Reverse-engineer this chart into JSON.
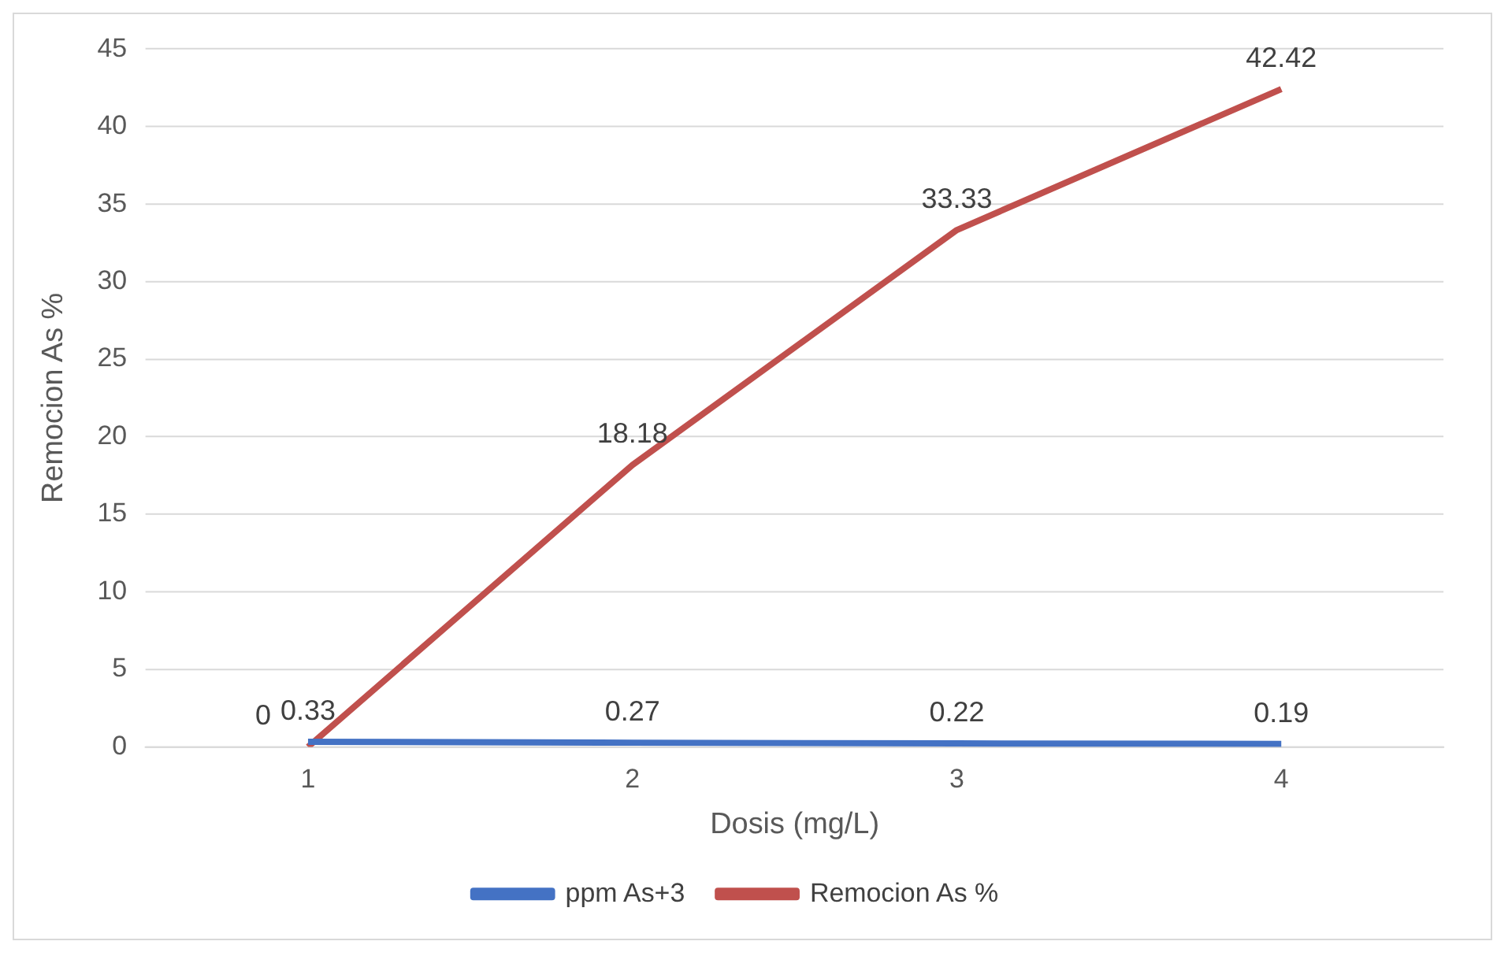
{
  "chart_data": {
    "type": "line",
    "xlabel": "Dosis (mg/L)",
    "ylabel": "Remocion As %",
    "categories": [
      "1",
      "2",
      "3",
      "4"
    ],
    "series": [
      {
        "name": "ppm As+3",
        "color": "#4472c4",
        "values": [
          0.33,
          0.27,
          0.22,
          0.19
        ]
      },
      {
        "name": "Remocion As %",
        "color": "#c0504d",
        "values": [
          0,
          18.18,
          33.33,
          42.42
        ]
      }
    ],
    "ylim": [
      0,
      45
    ],
    "yticks": [
      0,
      5,
      10,
      15,
      20,
      25,
      30,
      35,
      40,
      45
    ],
    "grid": "y",
    "legend": "bottom",
    "data_labels": true,
    "marker": "none",
    "line_style": "solid"
  }
}
